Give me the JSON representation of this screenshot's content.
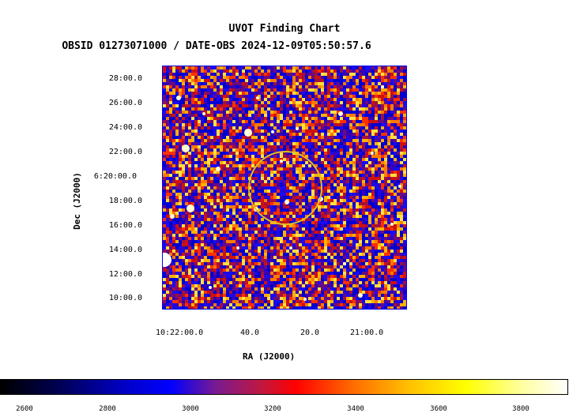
{
  "chart_data": {
    "type": "heatmap",
    "title": "UVOT Finding Chart",
    "subtitle": "OBSID 01273071000 / DATE-OBS 2024-12-09T05:50:57.6",
    "xlabel": "RA (J2000)",
    "ylabel": "Dec (J2000)",
    "x_ticks": [
      "10:22:00.0",
      "40.0",
      "20.0",
      "21:00.0"
    ],
    "y_ticks": [
      "28:00.0",
      "26:00.0",
      "24:00.0",
      "22:00.0",
      "6:20:00.0",
      "18:00.0",
      "16:00.0",
      "14:00.0",
      "12:00.0",
      "10:00.0"
    ],
    "colorbar": {
      "ticks": [
        "2600",
        "2800",
        "3000",
        "3200",
        "3400",
        "3600",
        "3800"
      ],
      "range": [
        2570,
        3890
      ],
      "colormap": "ds9 bb"
    },
    "target_circle": {
      "color": "#e0c020"
    }
  },
  "colors": {
    "frame": "#0000ff",
    "circle": "#e0c020"
  }
}
